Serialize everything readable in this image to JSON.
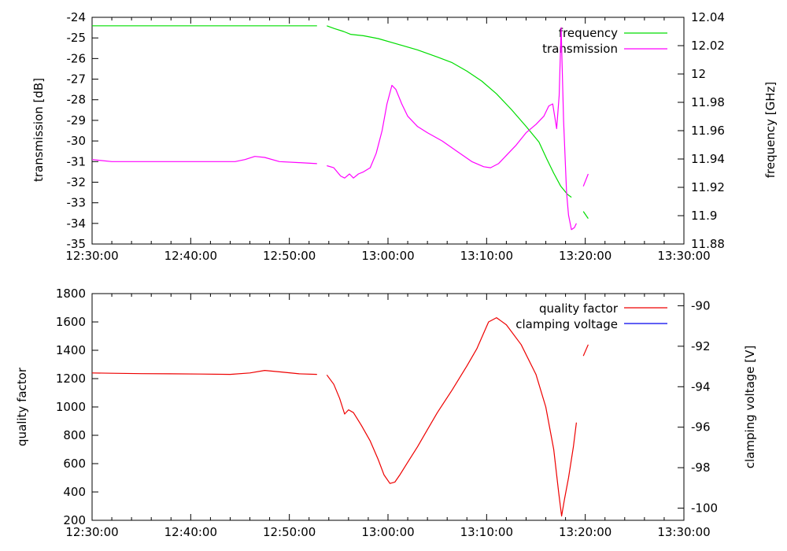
{
  "chart_data": [
    {
      "type": "line",
      "x_axis": {
        "label": "",
        "min_minutes": 0,
        "max_minutes": 60,
        "ticks": [
          {
            "minutes": 0,
            "label": "12:30:00"
          },
          {
            "minutes": 10,
            "label": "12:40:00"
          },
          {
            "minutes": 20,
            "label": "12:50:00"
          },
          {
            "minutes": 30,
            "label": "13:00:00"
          },
          {
            "minutes": 40,
            "label": "13:10:00"
          },
          {
            "minutes": 50,
            "label": "13:20:00"
          },
          {
            "minutes": 60,
            "label": "13:30:00"
          }
        ]
      },
      "y_left": {
        "label": "transmission [dB]",
        "min": -35,
        "max": -24,
        "ticks": [
          -35,
          -34,
          -33,
          -32,
          -31,
          -30,
          -29,
          -28,
          -27,
          -26,
          -25,
          -24
        ]
      },
      "y_right": {
        "label": "frequency [GHz]",
        "min": 11.88,
        "max": 12.04,
        "ticks": [
          {
            "v": 11.88,
            "label": "11.88"
          },
          {
            "v": 11.9,
            "label": "11.9"
          },
          {
            "v": 11.92,
            "label": "11.92"
          },
          {
            "v": 11.94,
            "label": "11.94"
          },
          {
            "v": 11.96,
            "label": "11.96"
          },
          {
            "v": 11.98,
            "label": "11.98"
          },
          {
            "v": 12.0,
            "label": "12"
          },
          {
            "v": 12.02,
            "label": "12.02"
          },
          {
            "v": 12.04,
            "label": "12.04"
          }
        ]
      },
      "legend_position": "top-right",
      "series": [
        {
          "name": "frequency",
          "axis": "right",
          "color": "#00dd00",
          "segments": [
            [
              [
                0,
                12.034
              ],
              [
                8,
                12.034
              ],
              [
                16,
                12.034
              ],
              [
                22.8,
                12.034
              ]
            ],
            [
              [
                23.8,
                12.034
              ],
              [
                24.6,
                12.032
              ],
              [
                25.5,
                12.03
              ],
              [
                26.2,
                12.028
              ],
              [
                27.5,
                12.027
              ],
              [
                29,
                12.025
              ],
              [
                31,
                12.021
              ],
              [
                33,
                12.017
              ],
              [
                35,
                12.012
              ],
              [
                36.5,
                12.008
              ],
              [
                38,
                12.002
              ],
              [
                39.5,
                11.995
              ],
              [
                41,
                11.986
              ],
              [
                42.5,
                11.975
              ],
              [
                44,
                11.963
              ],
              [
                45.3,
                11.952
              ],
              [
                46.1,
                11.94
              ],
              [
                46.8,
                11.93
              ],
              [
                47.5,
                11.921
              ],
              [
                48.2,
                11.915
              ],
              [
                48.6,
                11.913
              ]
            ],
            [
              [
                49.8,
                11.903
              ],
              [
                50.3,
                11.898
              ]
            ]
          ]
        },
        {
          "name": "transmission",
          "axis": "left",
          "color": "#ff00ff",
          "segments": [
            [
              [
                0,
                -30.9
              ],
              [
                2,
                -31.0
              ],
              [
                5,
                -31.0
              ],
              [
                8,
                -31.0
              ],
              [
                11,
                -31.0
              ],
              [
                13,
                -31.0
              ],
              [
                14.5,
                -31.0
              ],
              [
                15.5,
                -30.9
              ],
              [
                16.5,
                -30.75
              ],
              [
                17.5,
                -30.8
              ],
              [
                19,
                -31.0
              ],
              [
                21,
                -31.05
              ],
              [
                22.8,
                -31.1
              ]
            ],
            [
              [
                23.8,
                -31.2
              ],
              [
                24.5,
                -31.3
              ],
              [
                25.2,
                -31.7
              ],
              [
                25.6,
                -31.8
              ],
              [
                26.1,
                -31.6
              ],
              [
                26.5,
                -31.8
              ],
              [
                27,
                -31.6
              ],
              [
                27.5,
                -31.5
              ],
              [
                28.2,
                -31.3
              ],
              [
                28.8,
                -30.6
              ],
              [
                29.4,
                -29.5
              ],
              [
                29.9,
                -28.2
              ],
              [
                30.4,
                -27.3
              ],
              [
                30.8,
                -27.5
              ],
              [
                31.4,
                -28.2
              ],
              [
                32,
                -28.8
              ],
              [
                33,
                -29.3
              ],
              [
                34,
                -29.6
              ],
              [
                35.5,
                -30.0
              ],
              [
                37,
                -30.5
              ],
              [
                38.5,
                -31.0
              ],
              [
                39.7,
                -31.25
              ],
              [
                40.4,
                -31.3
              ],
              [
                41.2,
                -31.1
              ],
              [
                42,
                -30.7
              ],
              [
                43,
                -30.2
              ],
              [
                44,
                -29.6
              ],
              [
                45,
                -29.2
              ],
              [
                45.8,
                -28.8
              ],
              [
                46.3,
                -28.3
              ],
              [
                46.7,
                -28.2
              ],
              [
                47.1,
                -29.4
              ],
              [
                47.35,
                -27.8
              ],
              [
                47.55,
                -24.5
              ],
              [
                47.8,
                -29.0
              ],
              [
                48.1,
                -32.5
              ],
              [
                48.3,
                -33.6
              ],
              [
                48.6,
                -34.3
              ],
              [
                48.9,
                -34.2
              ],
              [
                49.1,
                -34.0
              ]
            ],
            [
              [
                49.8,
                -32.2
              ],
              [
                50.3,
                -31.6
              ]
            ]
          ]
        }
      ]
    },
    {
      "type": "line",
      "x_axis": {
        "label": "",
        "min_minutes": 0,
        "max_minutes": 60,
        "ticks": [
          {
            "minutes": 0,
            "label": "12:30:00"
          },
          {
            "minutes": 10,
            "label": "12:40:00"
          },
          {
            "minutes": 20,
            "label": "12:50:00"
          },
          {
            "minutes": 30,
            "label": "13:00:00"
          },
          {
            "minutes": 40,
            "label": "13:10:00"
          },
          {
            "minutes": 50,
            "label": "13:20:00"
          },
          {
            "minutes": 60,
            "label": "13:30:00"
          }
        ]
      },
      "y_left": {
        "label": "quality factor",
        "min": 200,
        "max": 1800,
        "ticks": [
          200,
          400,
          600,
          800,
          1000,
          1200,
          1400,
          1600,
          1800
        ]
      },
      "y_right": {
        "label": "clamping voltage [V]",
        "min": -100.6,
        "max": -89.4,
        "ticks": [
          {
            "v": -100,
            "label": "-100"
          },
          {
            "v": -98,
            "label": "-98"
          },
          {
            "v": -96,
            "label": "-96"
          },
          {
            "v": -94,
            "label": "-94"
          },
          {
            "v": -92,
            "label": "-92"
          },
          {
            "v": -90,
            "label": "-90"
          }
        ]
      },
      "legend_position": "top-right",
      "series": [
        {
          "name": "quality factor",
          "axis": "left",
          "color": "#ee0000",
          "segments": [
            [
              [
                0,
                1240
              ],
              [
                2,
                1238
              ],
              [
                5,
                1235
              ],
              [
                8,
                1234
              ],
              [
                11,
                1232
              ],
              [
                14,
                1230
              ],
              [
                16,
                1240
              ],
              [
                17.5,
                1258
              ],
              [
                19,
                1248
              ],
              [
                21,
                1234
              ],
              [
                22.8,
                1230
              ]
            ],
            [
              [
                23.8,
                1226
              ],
              [
                24.5,
                1160
              ],
              [
                25.1,
                1060
              ],
              [
                25.6,
                950
              ],
              [
                26,
                980
              ],
              [
                26.5,
                960
              ],
              [
                27.3,
                870
              ],
              [
                28.2,
                760
              ],
              [
                29,
                630
              ],
              [
                29.6,
                520
              ],
              [
                30.2,
                460
              ],
              [
                30.7,
                470
              ],
              [
                31.2,
                520
              ],
              [
                32,
                610
              ],
              [
                33,
                720
              ],
              [
                34,
                840
              ],
              [
                35,
                960
              ],
              [
                36.5,
                1120
              ],
              [
                38,
                1290
              ],
              [
                39,
                1410
              ],
              [
                40.2,
                1600
              ],
              [
                41,
                1630
              ],
              [
                42,
                1580
              ],
              [
                43.5,
                1440
              ],
              [
                45,
                1230
              ],
              [
                46,
                1000
              ],
              [
                46.8,
                700
              ],
              [
                47.3,
                400
              ],
              [
                47.6,
                230
              ],
              [
                47.9,
                350
              ],
              [
                48.3,
                500
              ],
              [
                48.8,
                720
              ],
              [
                49.1,
                890
              ]
            ],
            [
              [
                49.8,
                1360
              ],
              [
                50.3,
                1440
              ]
            ]
          ]
        },
        {
          "name": "clamping voltage",
          "axis": "right",
          "color": "#0000ee",
          "segments": []
        }
      ]
    }
  ]
}
